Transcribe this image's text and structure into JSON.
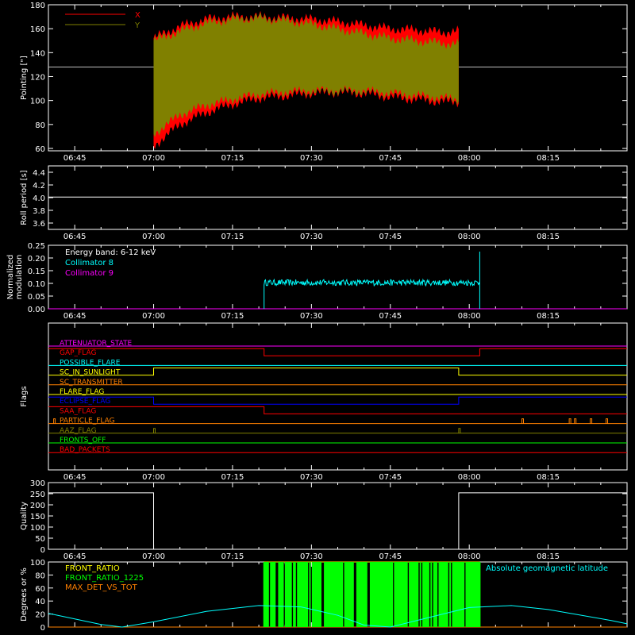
{
  "colors": {
    "background": "#000000",
    "axes": "#ffffff",
    "x_pointing": "#ff0000",
    "y_pointing": "#808000",
    "collimator_8": "#00ffff",
    "collimator_9": "#ff00ff",
    "front_ratio": "#ffff00",
    "front_ratio_1225": "#00ff00",
    "max_det_vs_tot": "#ff8000",
    "geomag_latitude": "#00ffff"
  },
  "chart_data": [
    {
      "id": "pointing",
      "type": "area",
      "title": "",
      "xlabel": "",
      "ylabel": "Pointing [\"]",
      "xlim": [
        "06:40",
        "08:30"
      ],
      "ylim": [
        58,
        180
      ],
      "x_tick_labels": [
        "06:45",
        "07:00",
        "07:15",
        "07:30",
        "07:45",
        "08:00",
        "08:15"
      ],
      "y_tick_labels": [
        "60",
        "80",
        "100",
        "120",
        "140",
        "160",
        "180"
      ],
      "reference_line": 128,
      "legend": [
        "X",
        "Y"
      ],
      "legend_position": "top-left",
      "series": [
        {
          "name": "X",
          "x": [
            "07:00",
            "07:05",
            "07:10",
            "07:15",
            "07:20",
            "07:25",
            "07:30",
            "07:35",
            "07:40",
            "07:45",
            "07:50",
            "07:55",
            "07:58"
          ],
          "upper": [
            152,
            162,
            168,
            170,
            170,
            169,
            168,
            166,
            163,
            160,
            159,
            157,
            158
          ],
          "lower": [
            62,
            80,
            90,
            97,
            102,
            104,
            106,
            107,
            106,
            103,
            101,
            99,
            99
          ]
        },
        {
          "name": "Y",
          "x": [
            "07:00",
            "07:05",
            "07:10",
            "07:15",
            "07:20",
            "07:25",
            "07:30",
            "07:35",
            "07:40",
            "07:45",
            "07:50",
            "07:55",
            "07:58"
          ],
          "upper": [
            150,
            158,
            165,
            168,
            169,
            167,
            164,
            160,
            156,
            152,
            150,
            148,
            147
          ],
          "lower": [
            72,
            88,
            96,
            101,
            105,
            107,
            108,
            108,
            108,
            106,
            104,
            102,
            101
          ]
        }
      ]
    },
    {
      "id": "roll",
      "type": "line",
      "ylabel": "Roll period [s]",
      "xlim": [
        "06:40",
        "08:30"
      ],
      "ylim": [
        3.5,
        4.5
      ],
      "x_tick_labels": [
        "06:45",
        "07:00",
        "07:15",
        "07:30",
        "07:45",
        "08:00",
        "08:15"
      ],
      "y_tick_labels": [
        "3.6",
        "3.8",
        "4.0",
        "4.2",
        "4.4"
      ],
      "series": [
        {
          "x": [
            "06:40",
            "08:30"
          ],
          "values": [
            4.01,
            4.01
          ]
        }
      ]
    },
    {
      "id": "modulation",
      "type": "line",
      "ylabel": [
        "Normalized",
        "modulation"
      ],
      "xlim": [
        "06:40",
        "08:30"
      ],
      "ylim": [
        0,
        0.25
      ],
      "x_tick_labels": [
        "06:45",
        "07:00",
        "07:15",
        "07:30",
        "07:45",
        "08:00",
        "08:15"
      ],
      "y_tick_labels": [
        "0.00",
        "0.05",
        "0.10",
        "0.15",
        "0.20",
        "0.25"
      ],
      "annotation": "Energy band: 6-12 keV",
      "legend": [
        "Collimator 8",
        "Collimator 9"
      ],
      "legend_position": "top-left",
      "series": [
        {
          "name": "Collimator 8",
          "x_start": "07:21",
          "x_end": "08:02",
          "mean": 0.103,
          "noise": 0.012,
          "final_spike": 0.225
        },
        {
          "name": "Collimator 9",
          "x": [
            "06:40",
            "08:30"
          ],
          "values": [
            0.0,
            0.0
          ]
        }
      ]
    },
    {
      "id": "flags",
      "type": "line",
      "ylabel": "Flags",
      "xlim": [
        "06:40",
        "08:30"
      ],
      "x_tick_labels": [
        "06:45",
        "07:00",
        "07:15",
        "07:30",
        "07:45",
        "08:00",
        "08:15"
      ],
      "flags": [
        {
          "name": "ATTENUATOR_STATE",
          "color": "#ff00ff",
          "steps": [
            [
              "06:40",
              0
            ]
          ]
        },
        {
          "name": "GAP_FLAG",
          "color": "#ff0000",
          "steps": [
            [
              "06:40",
              1
            ],
            [
              "07:21",
              0
            ],
            [
              "08:02",
              1
            ]
          ]
        },
        {
          "name": "POSSIBLE_FLARE",
          "color": "#00ffff",
          "steps": [
            [
              "06:40",
              0
            ]
          ]
        },
        {
          "name": "SC_IN_SUNLIGHT",
          "color": "#ffff00",
          "steps": [
            [
              "06:40",
              0
            ],
            [
              "07:00",
              1
            ],
            [
              "07:58",
              0
            ]
          ]
        },
        {
          "name": "SC_TRANSMITTER",
          "color": "#ff8000",
          "steps": [
            [
              "06:40",
              0
            ]
          ]
        },
        {
          "name": "FLARE_FLAG",
          "color": "#ffff00",
          "steps": [
            [
              "06:40",
              0
            ]
          ]
        },
        {
          "name": "ECLIPSE_FLAG",
          "color": "#0000ff",
          "steps": [
            [
              "06:40",
              1
            ],
            [
              "07:00",
              0
            ],
            [
              "07:58",
              1
            ]
          ]
        },
        {
          "name": "SAA_FLAG",
          "color": "#ff0000",
          "steps": [
            [
              "06:40",
              1
            ],
            [
              "07:21",
              0
            ]
          ]
        },
        {
          "name": "PARTICLE_FLAG",
          "color": "#ff8000",
          "steps": [
            [
              "06:40",
              0
            ]
          ],
          "spikes": [
            "06:41",
            "08:10",
            "08:19",
            "08:20",
            "08:23",
            "08:26"
          ]
        },
        {
          "name": "AAZ_FLAG",
          "color": "#808000",
          "steps": [
            [
              "06:40",
              0
            ]
          ],
          "spikes": [
            "07:00",
            "07:58"
          ]
        },
        {
          "name": "FRONTS_OFF",
          "color": "#00ff00",
          "steps": [
            [
              "06:40",
              0
            ]
          ]
        },
        {
          "name": "BAD_PACKETS",
          "color": "#ff0000",
          "steps": [
            [
              "06:40",
              0
            ]
          ]
        }
      ]
    },
    {
      "id": "quality",
      "type": "line",
      "ylabel": "Quality",
      "xlim": [
        "06:40",
        "08:30"
      ],
      "ylim": [
        0,
        300
      ],
      "x_tick_labels": [
        "06:45",
        "07:00",
        "07:15",
        "07:30",
        "07:45",
        "08:00",
        "08:15"
      ],
      "y_tick_labels": [
        "0",
        "50",
        "100",
        "150",
        "200",
        "250",
        "300"
      ],
      "series": [
        {
          "steps": [
            [
              "06:40",
              254
            ],
            [
              "07:00",
              0
            ],
            [
              "07:58",
              254
            ]
          ]
        }
      ]
    },
    {
      "id": "ratios",
      "type": "line",
      "ylabel": "Degrees or %",
      "xlim": [
        "06:40",
        "08:30"
      ],
      "ylim": [
        0,
        100
      ],
      "y_tick_labels": [
        "0",
        "20",
        "40",
        "60",
        "80",
        "100"
      ],
      "legend": [
        "FRONT_RATIO",
        "FRONT_RATIO_1225",
        "MAX_DET_VS_TOT"
      ],
      "legend_position": "top-left",
      "right_label": "Absolute geomagnetic latitude",
      "series": [
        {
          "name": "FRONT_RATIO",
          "x_start": "07:21",
          "x_end": "08:02",
          "value": 100
        },
        {
          "name": "FRONT_RATIO_1225",
          "x_start": "07:21",
          "x_end": "08:02",
          "values": [
            0,
            100
          ]
        },
        {
          "name": "MAX_DET_VS_TOT",
          "x": [
            "06:40",
            "08:30"
          ],
          "values": [
            0,
            0
          ]
        },
        {
          "name": "Absolute geomagnetic latitude",
          "x": [
            "06:40",
            "06:50",
            "06:54",
            "07:00",
            "07:10",
            "07:20",
            "07:28",
            "07:35",
            "07:40",
            "07:45",
            "07:52",
            "08:00",
            "08:08",
            "08:15",
            "08:20",
            "08:27",
            "08:30"
          ],
          "values": [
            21,
            4,
            0,
            8,
            24,
            33,
            31,
            18,
            3,
            0,
            14,
            30,
            33,
            27,
            20,
            10,
            5
          ]
        }
      ]
    }
  ]
}
